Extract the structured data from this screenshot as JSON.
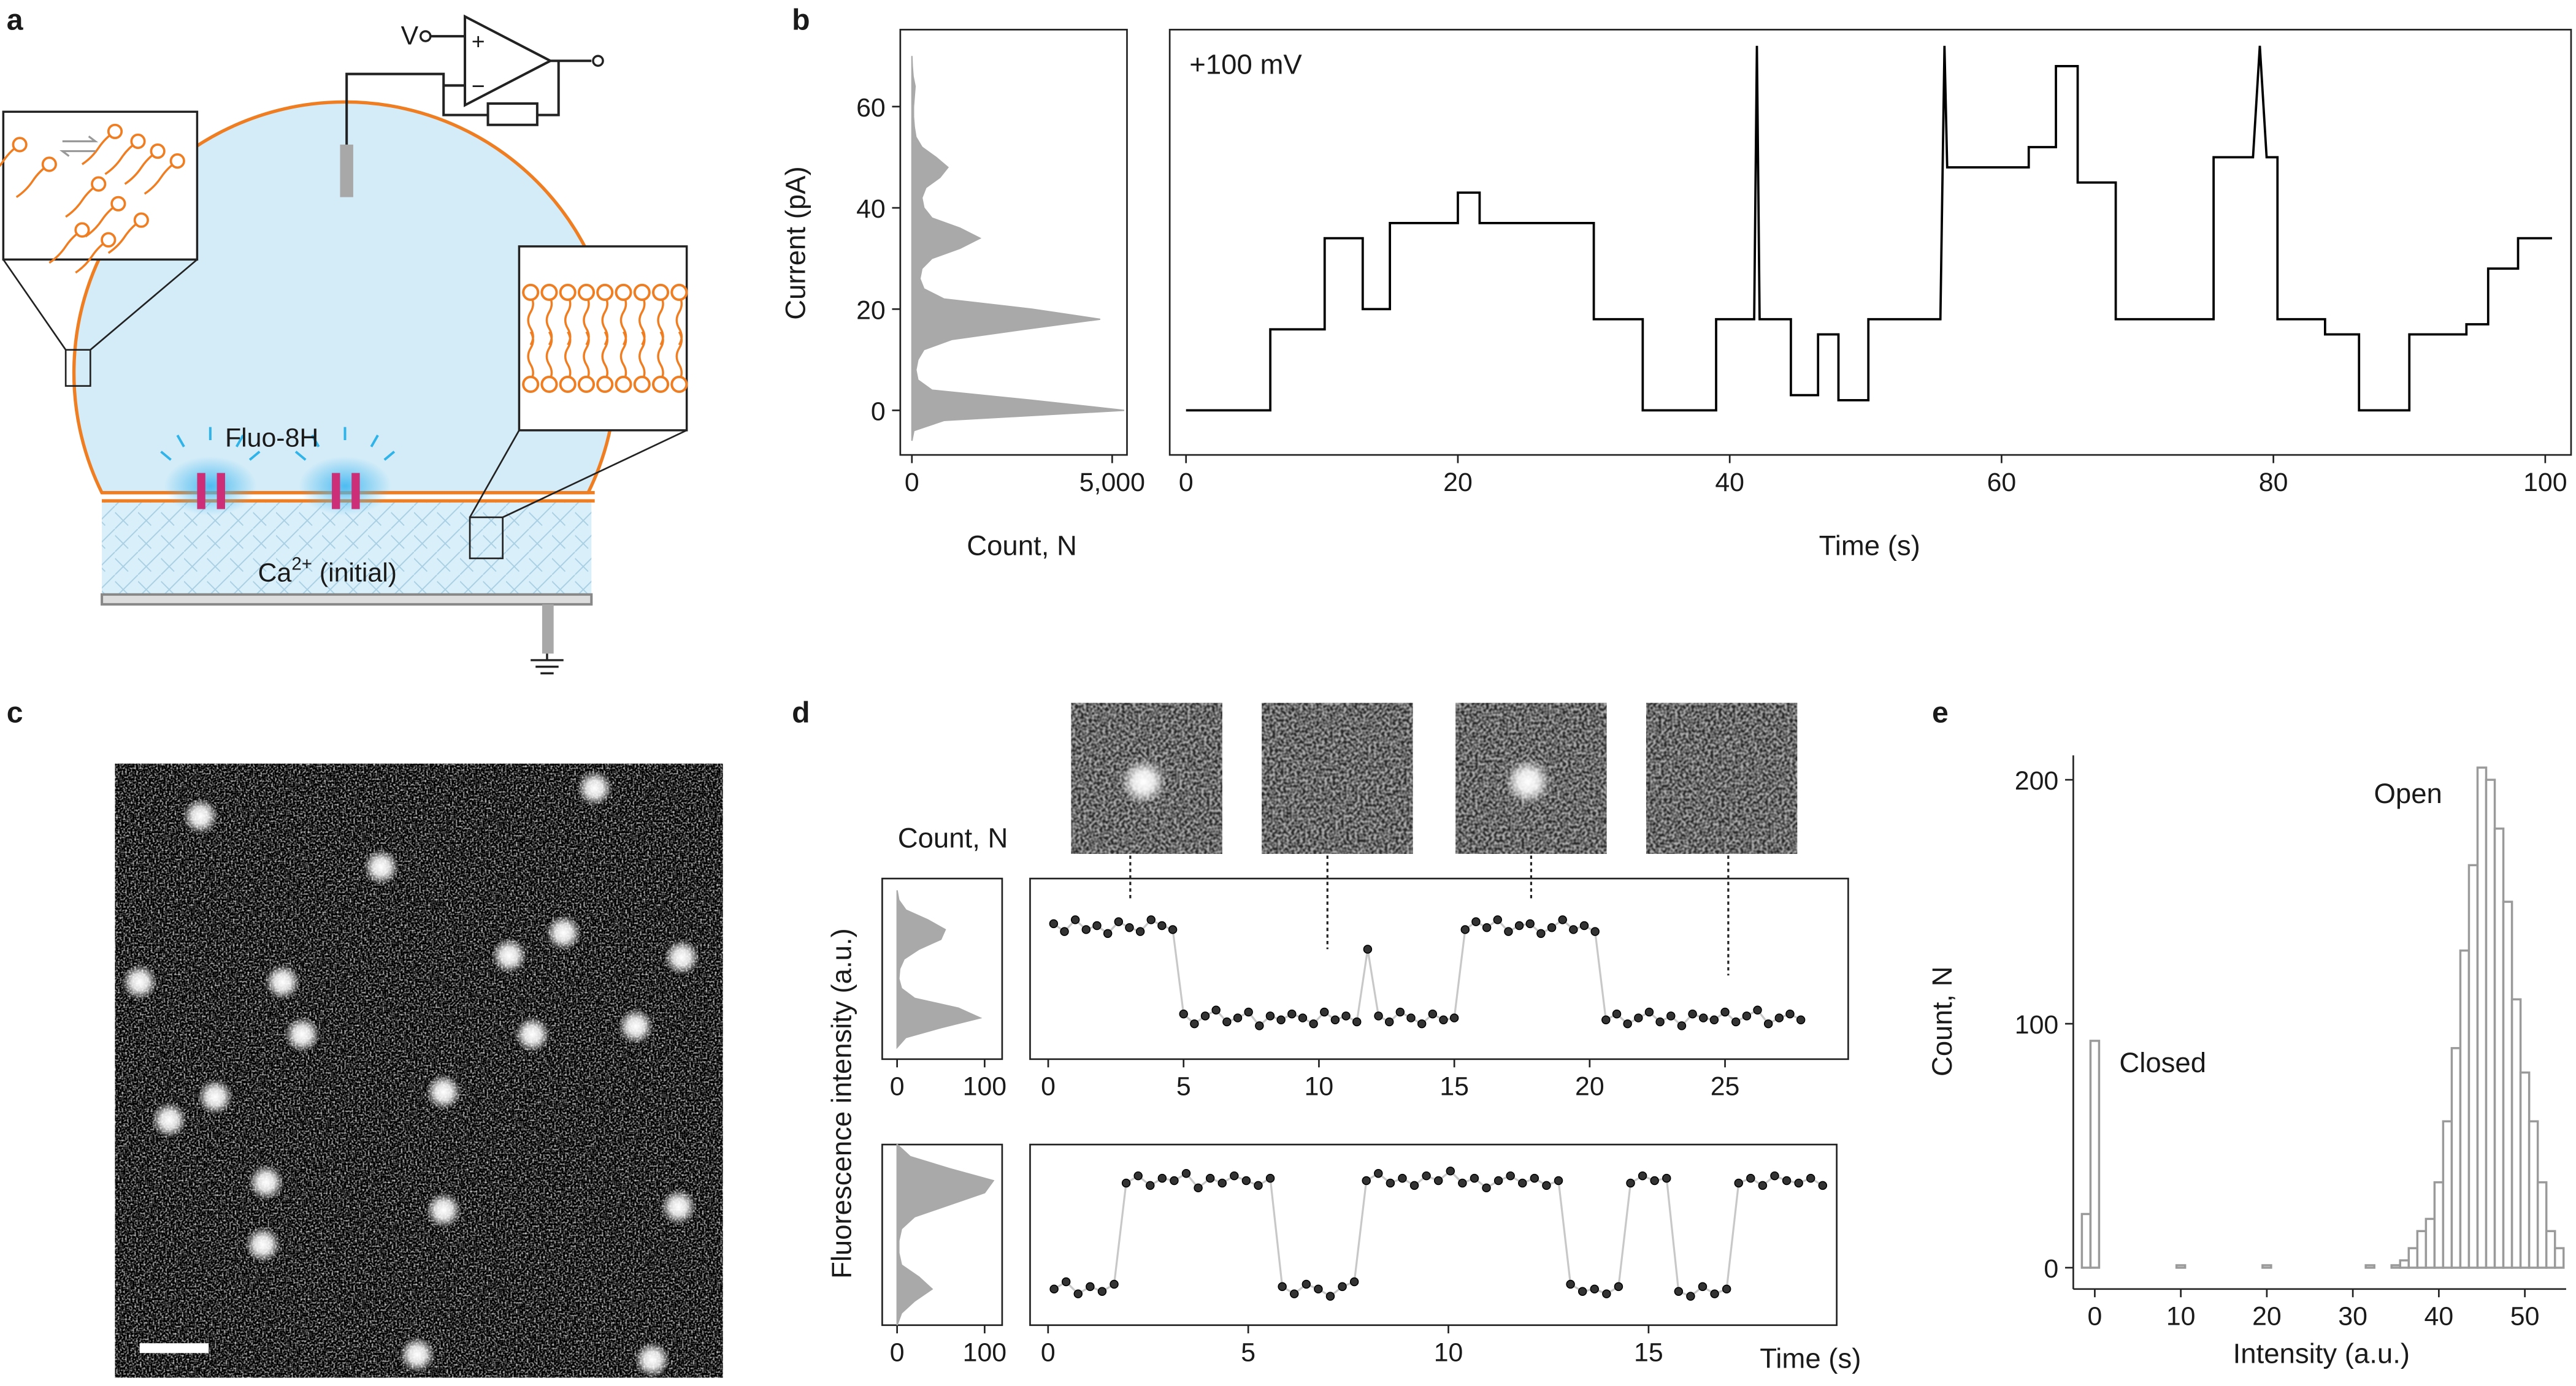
{
  "panel_labels": [
    "a",
    "b",
    "c",
    "d",
    "e"
  ],
  "diagram": {
    "voltage": "V",
    "plus": "+",
    "minus": "−",
    "dye": "Fluo-8H",
    "ion": "Ca",
    "ion_charge": "2+",
    "ion_note": " (initial)"
  },
  "chart_data": [
    {
      "type": "area",
      "orientation": "horizontal",
      "color": "#a9a9a9",
      "xlabel": "Count, N",
      "ylabel": "Current (pA)",
      "x": [
        -6,
        -4,
        -2,
        0,
        2,
        4,
        6,
        8,
        10,
        12,
        14,
        16,
        18,
        20,
        22,
        24,
        26,
        28,
        30,
        32,
        34,
        36,
        38,
        40,
        42,
        44,
        46,
        48,
        50,
        52,
        54,
        56,
        58,
        60,
        62,
        64,
        66,
        68,
        70
      ],
      "values": [
        0,
        50,
        800,
        5300,
        3000,
        500,
        150,
        100,
        150,
        300,
        1000,
        2800,
        4700,
        3000,
        800,
        300,
        200,
        250,
        500,
        1200,
        1700,
        1200,
        500,
        300,
        250,
        350,
        700,
        900,
        600,
        250,
        100,
        60,
        40,
        40,
        60,
        80,
        30,
        10,
        0
      ],
      "xlim": [
        -290,
        5370
      ],
      "xticks": [
        0,
        {
          "value": 5000,
          "label": "5,000"
        }
      ],
      "ylim": [
        -8.8,
        75.2
      ],
      "yticks": [
        0,
        20,
        40,
        60
      ]
    },
    {
      "type": "line",
      "color": "#000000",
      "xlabel": "Time (s)",
      "annotations": [
        "+100 mV"
      ],
      "x": [
        0,
        6.2,
        6.2,
        10.2,
        10.2,
        13,
        13,
        15,
        15,
        20,
        20,
        21.6,
        21.6,
        30,
        30,
        33.6,
        33.6,
        39,
        39,
        41.8,
        42,
        42.2,
        44.5,
        44.5,
        46.5,
        46.5,
        48,
        48,
        50.2,
        50.2,
        55.5,
        55.8,
        56,
        62,
        62,
        64,
        64,
        65.6,
        65.6,
        68.4,
        68.4,
        75.6,
        75.6,
        78.5,
        79,
        79.5,
        80.3,
        80.3,
        83.8,
        83.8,
        86.3,
        86.3,
        90,
        90,
        94.2,
        94.2,
        95.8,
        95.8,
        98,
        98,
        100.5
      ],
      "values": [
        0,
        0,
        16,
        16,
        34,
        34,
        20,
        20,
        37,
        37,
        43,
        43,
        37,
        37,
        18,
        18,
        0,
        0,
        18,
        18,
        72,
        18,
        18,
        3,
        3,
        15,
        15,
        2,
        2,
        18,
        18,
        72,
        48,
        48,
        52,
        52,
        68,
        68,
        45,
        45,
        18,
        18,
        50,
        50,
        72,
        50,
        50,
        18,
        18,
        15,
        15,
        0,
        0,
        15,
        15,
        17,
        17,
        28,
        28,
        34,
        34
      ],
      "xlim": [
        -1.2,
        101.9
      ],
      "xticks": [
        0,
        20,
        40,
        60,
        80,
        100
      ],
      "ylim": [
        -8.8,
        75.2
      ]
    },
    {
      "type": "area",
      "orientation": "horizontal",
      "color": "#a9a9a9",
      "xlabel": "Count, N",
      "ylabel": "Fluorescence intensity (a.u.)",
      "x": [
        -15,
        -10,
        -5,
        0,
        5,
        10,
        15,
        20,
        25,
        30,
        35,
        40,
        45,
        50,
        55,
        60,
        65
      ],
      "values": [
        0,
        10,
        50,
        95,
        70,
        20,
        5,
        2,
        3,
        8,
        25,
        50,
        55,
        35,
        10,
        2,
        0
      ],
      "xlim": [
        -17,
        120
      ],
      "xticks": [
        0,
        100
      ],
      "ylim": [
        -21,
        71
      ]
    },
    {
      "type": "scatter",
      "color": "#333333",
      "line_color": "#c8c8c8",
      "x": [
        0.2,
        0.6,
        1,
        1.4,
        1.8,
        2.2,
        2.6,
        3,
        3.4,
        3.8,
        4.2,
        4.6,
        5,
        5.4,
        5.8,
        6.2,
        6.6,
        7,
        7.4,
        7.8,
        8.2,
        8.6,
        9,
        9.4,
        9.8,
        10.2,
        10.6,
        11,
        11.4,
        11.8,
        12.2,
        12.6,
        13,
        13.4,
        13.8,
        14.2,
        14.6,
        15,
        15.4,
        15.8,
        16.2,
        16.6,
        17,
        17.4,
        17.8,
        18.2,
        18.6,
        19,
        19.4,
        19.8,
        20.2,
        20.6,
        21,
        21.4,
        21.8,
        22.2,
        22.6,
        23,
        23.4,
        23.8,
        24.2,
        24.6,
        25,
        25.4,
        25.8,
        26.2,
        26.6,
        27,
        27.4,
        27.8
      ],
      "values": [
        48,
        44,
        50,
        45,
        47,
        43,
        49,
        46,
        44,
        50,
        47,
        45,
        2,
        -3,
        1,
        4,
        -2,
        0,
        3,
        -4,
        1,
        -1,
        2,
        0,
        -3,
        3,
        -1,
        1,
        -2,
        35,
        1,
        -2,
        3,
        0,
        -3,
        2,
        -1,
        0,
        45,
        49,
        46,
        50,
        44,
        47,
        48,
        43,
        46,
        50,
        45,
        47,
        44,
        -1,
        2,
        -3,
        0,
        3,
        -2,
        1,
        -4,
        2,
        0,
        -1,
        3,
        -2,
        1,
        4,
        -3,
        0,
        2,
        -1
      ],
      "xlim": [
        -0.67,
        29.55
      ],
      "xticks": [
        0,
        5,
        10,
        15,
        20,
        25
      ],
      "ylim": [
        -21,
        71
      ]
    },
    {
      "type": "area",
      "orientation": "horizontal",
      "color": "#a9a9a9",
      "x": [
        -15,
        -10,
        -5,
        0,
        5,
        10,
        15,
        20,
        25,
        30,
        35,
        40,
        45,
        50,
        55,
        60
      ],
      "values": [
        0,
        5,
        20,
        40,
        25,
        5,
        2,
        2,
        5,
        20,
        60,
        100,
        110,
        60,
        15,
        0
      ],
      "xlim": [
        -17,
        120
      ],
      "xticks": [
        0,
        100
      ],
      "ylim": [
        -15,
        60
      ]
    },
    {
      "type": "scatter",
      "color": "#333333",
      "line_color": "#c8c8c8",
      "xlabel": "Time (s)",
      "x": [
        0.15,
        0.45,
        0.75,
        1.05,
        1.35,
        1.65,
        1.95,
        2.25,
        2.55,
        2.85,
        3.15,
        3.45,
        3.75,
        4.05,
        4.35,
        4.65,
        4.95,
        5.25,
        5.55,
        5.85,
        6.15,
        6.45,
        6.75,
        7.05,
        7.35,
        7.65,
        7.95,
        8.25,
        8.55,
        8.85,
        9.15,
        9.45,
        9.75,
        10.05,
        10.35,
        10.65,
        10.95,
        11.25,
        11.55,
        11.85,
        12.15,
        12.45,
        12.75,
        13.05,
        13.35,
        13.65,
        13.95,
        14.25,
        14.55,
        14.85,
        15.15,
        15.45,
        15.75,
        16.05,
        16.35,
        16.65,
        16.95,
        17.25,
        17.55,
        17.85,
        18.15,
        18.45,
        18.75,
        19.05,
        19.35
      ],
      "values": [
        0,
        3,
        -2,
        1,
        -1,
        2,
        44,
        47,
        43,
        46,
        45,
        48,
        42,
        46,
        44,
        47,
        45,
        43,
        46,
        1,
        -2,
        2,
        0,
        -3,
        1,
        3,
        45,
        48,
        44,
        46,
        43,
        47,
        45,
        49,
        44,
        46,
        42,
        45,
        47,
        44,
        46,
        43,
        45,
        2,
        -1,
        0,
        -2,
        1,
        44,
        47,
        45,
        46,
        -1,
        -3,
        1,
        -2,
        0,
        44,
        46,
        43,
        47,
        45,
        44,
        46,
        43
      ],
      "xlim": [
        -0.45,
        19.7
      ],
      "xticks": [
        0,
        5,
        10,
        15
      ],
      "ylim": [
        -15,
        60
      ]
    },
    {
      "type": "histogram",
      "color": "#9a9a9a",
      "xlabel": "Intensity (a.u.)",
      "ylabel": "Count, N",
      "annotations": [
        "Open",
        "Closed"
      ],
      "bins": [
        -1.5,
        -0.5,
        0.5,
        1.5,
        2.5,
        3.5,
        4.5,
        5.5,
        6.5,
        7.5,
        8.5,
        9.5,
        10.5,
        11.5,
        12.5,
        13.5,
        14.5,
        15.5,
        16.5,
        17.5,
        18.5,
        19.5,
        20.5,
        21.5,
        22.5,
        23.5,
        24.5,
        25.5,
        26.5,
        27.5,
        28.5,
        29.5,
        30.5,
        31.5,
        32.5,
        33.5,
        34.5,
        35.5,
        36.5,
        37.5,
        38.5,
        39.5,
        40.5,
        41.5,
        42.5,
        43.5,
        44.5,
        45.5,
        46.5,
        47.5,
        48.5,
        49.5,
        50.5,
        51.5,
        52.5,
        53.5,
        54.5
      ],
      "values": [
        22,
        93,
        0,
        0,
        0,
        0,
        0,
        0,
        0,
        0,
        0,
        1,
        0,
        0,
        0,
        0,
        0,
        0,
        0,
        0,
        0,
        1,
        0,
        0,
        0,
        0,
        0,
        0,
        0,
        0,
        0,
        0,
        0,
        1,
        0,
        0,
        1,
        3,
        8,
        15,
        20,
        35,
        60,
        90,
        130,
        165,
        205,
        200,
        180,
        150,
        110,
        80,
        60,
        35,
        15,
        8
      ],
      "xlim": [
        -2.5,
        54.8
      ],
      "xticks": [
        0,
        10,
        20,
        30,
        40,
        50
      ],
      "ylim": [
        -8.75,
        210
      ],
      "yticks": [
        0,
        100,
        200
      ]
    }
  ]
}
